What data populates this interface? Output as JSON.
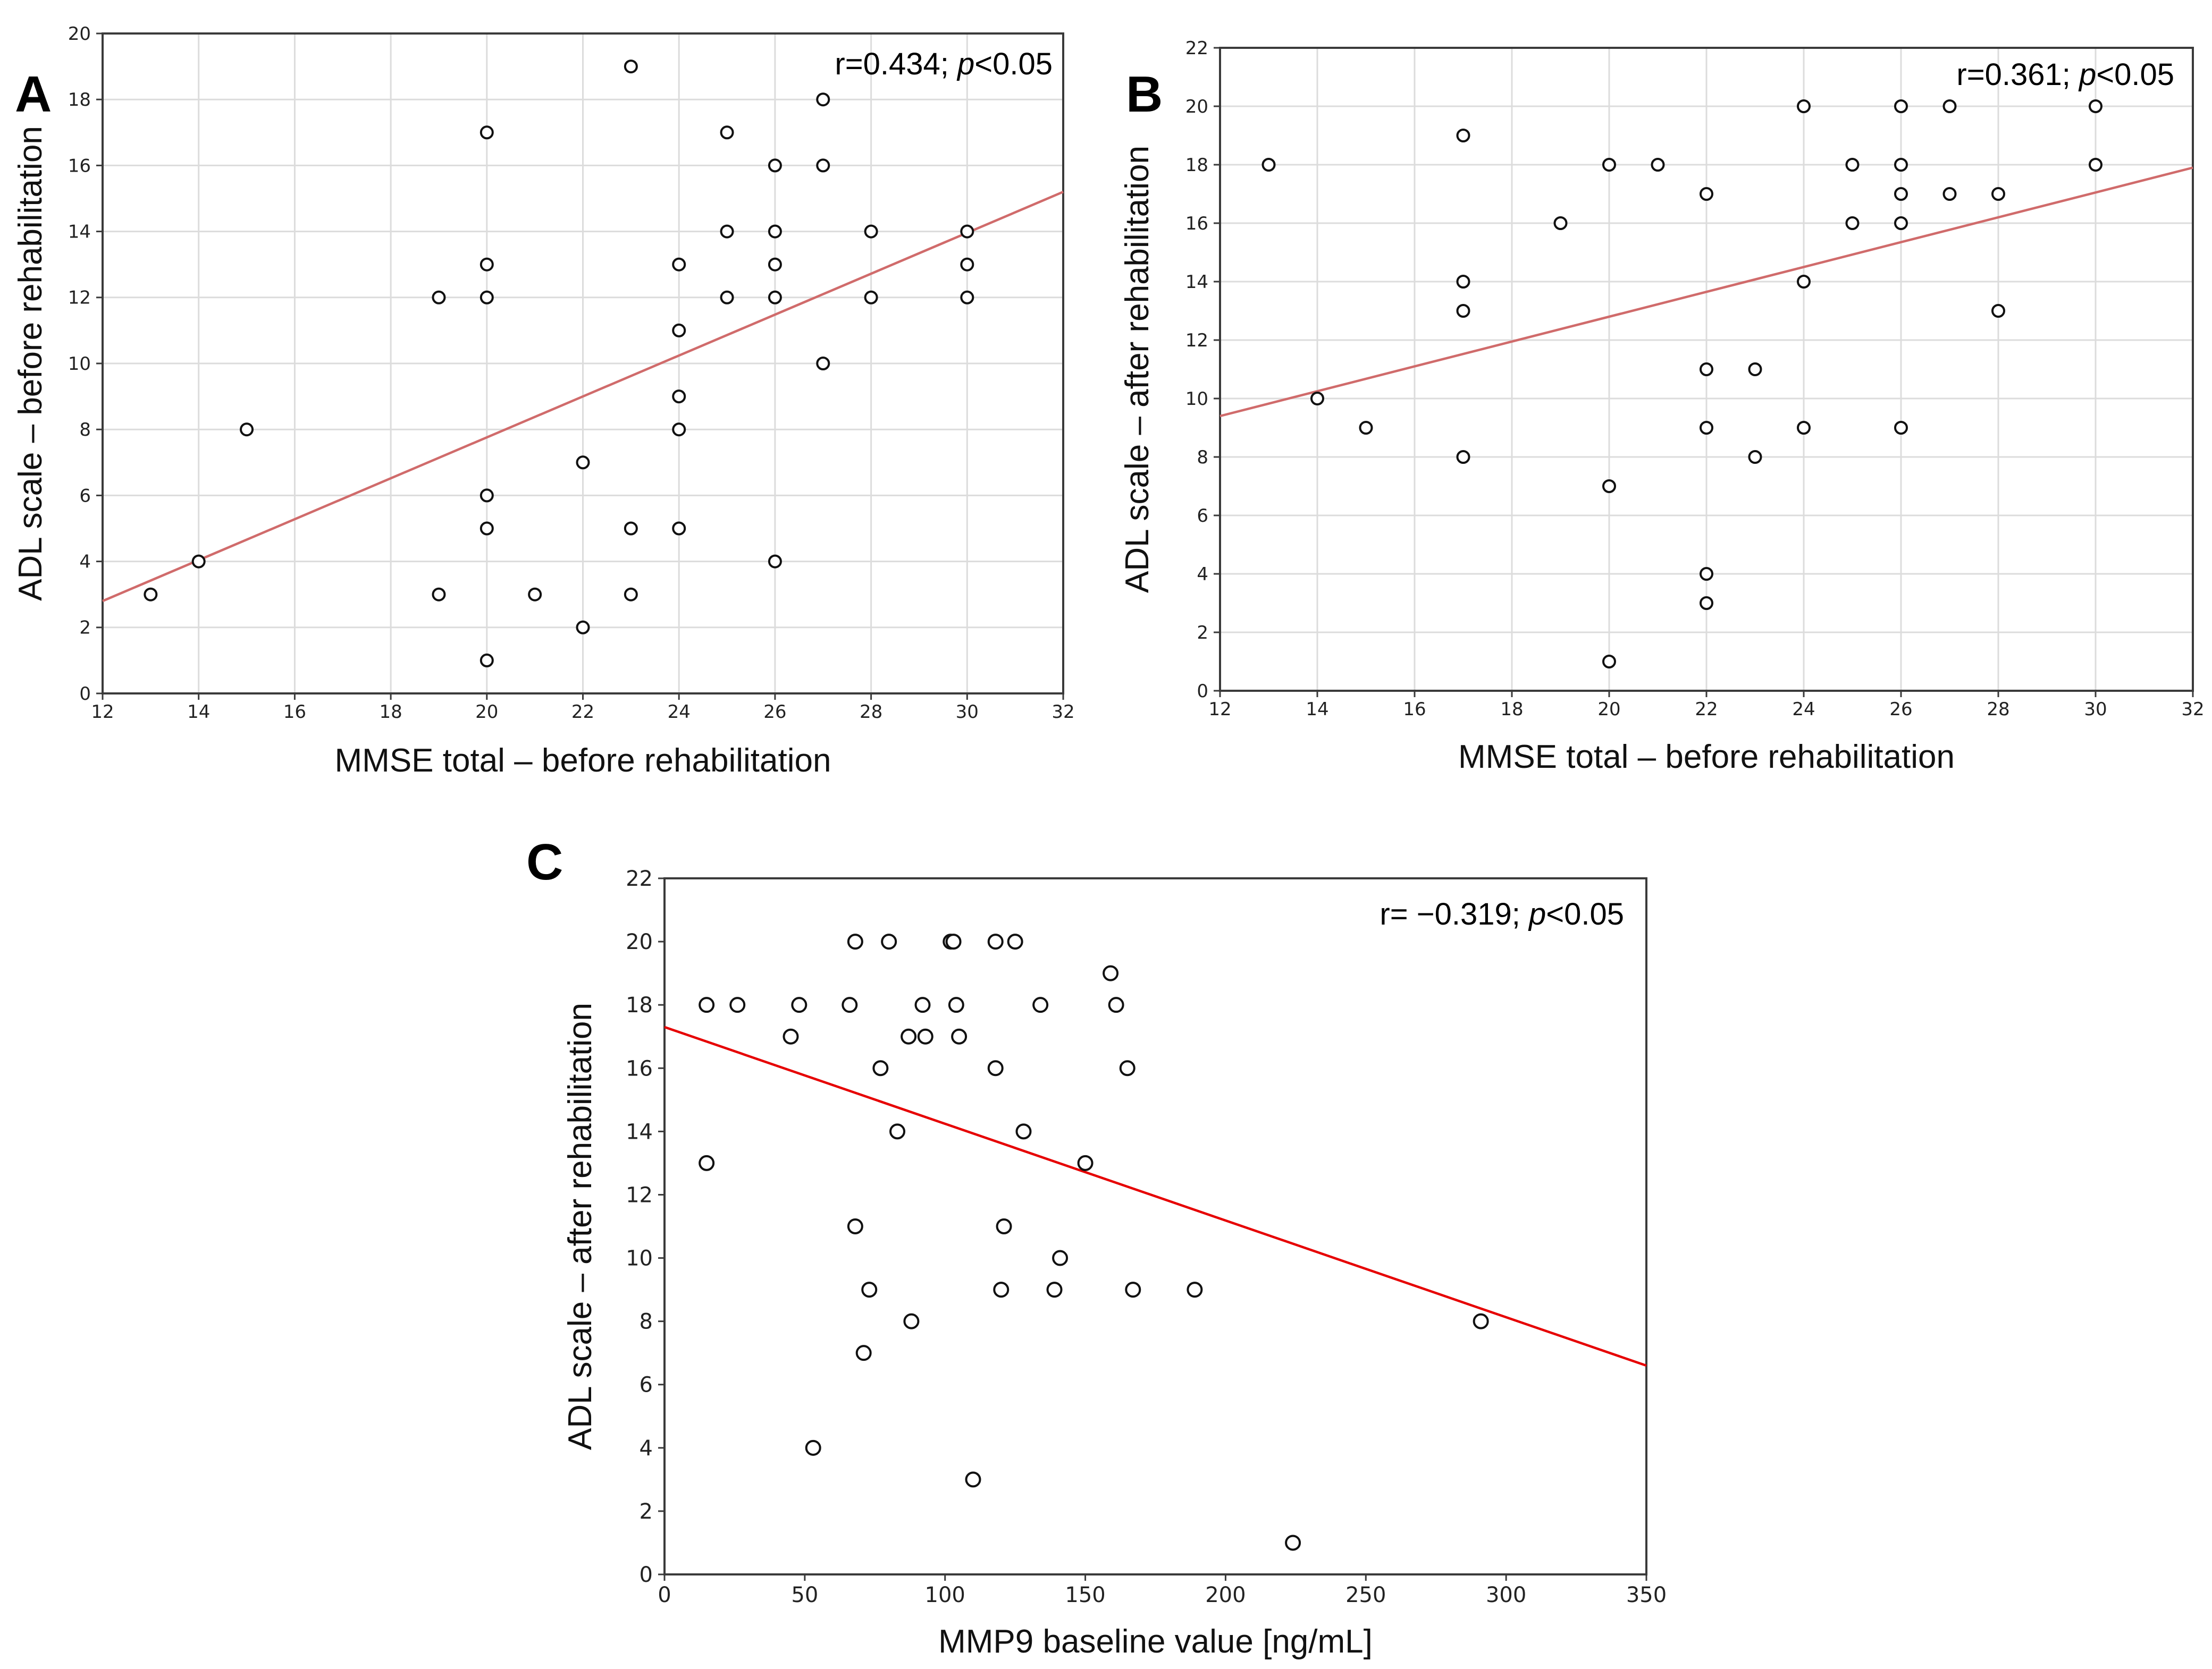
{
  "chart_data": [
    {
      "panel": "A",
      "type": "scatter",
      "xlabel": "MMSE total – before rehabilitation",
      "ylabel": "ADL scale – before rehabilitation",
      "annotation": {
        "r": "r=0.434;",
        "p_sym": "p",
        "p_rest": "<0.05"
      },
      "xlim": [
        12,
        32
      ],
      "ylim": [
        0,
        20
      ],
      "xticks": [
        12,
        14,
        16,
        18,
        20,
        22,
        24,
        26,
        28,
        30,
        32
      ],
      "yticks": [
        0,
        2,
        4,
        6,
        8,
        10,
        12,
        14,
        16,
        18,
        20
      ],
      "grid": true,
      "line_color": "#d06b6b",
      "fit_line": {
        "x": [
          12,
          32
        ],
        "y": [
          2.8,
          15.2
        ]
      },
      "points": [
        [
          13,
          3
        ],
        [
          14,
          4
        ],
        [
          15,
          8
        ],
        [
          19,
          12
        ],
        [
          19,
          3
        ],
        [
          20,
          17
        ],
        [
          20,
          13
        ],
        [
          20,
          12
        ],
        [
          20,
          6
        ],
        [
          20,
          5
        ],
        [
          20,
          1
        ],
        [
          21,
          3
        ],
        [
          22,
          7
        ],
        [
          22,
          2
        ],
        [
          23,
          19
        ],
        [
          23,
          5
        ],
        [
          23,
          3
        ],
        [
          24,
          13
        ],
        [
          24,
          11
        ],
        [
          24,
          9
        ],
        [
          24,
          8
        ],
        [
          24,
          5
        ],
        [
          25,
          17
        ],
        [
          25,
          14
        ],
        [
          25,
          12
        ],
        [
          26,
          16
        ],
        [
          26,
          14
        ],
        [
          26,
          13
        ],
        [
          26,
          12
        ],
        [
          26,
          4
        ],
        [
          27,
          18
        ],
        [
          27,
          16
        ],
        [
          27,
          10
        ],
        [
          28,
          14
        ],
        [
          28,
          12
        ],
        [
          30,
          14
        ],
        [
          30,
          13
        ],
        [
          30,
          12
        ]
      ]
    },
    {
      "panel": "B",
      "type": "scatter",
      "xlabel": "MMSE total – before rehabilitation",
      "ylabel": "ADL scale – after rehabilitation",
      "annotation": {
        "r": "r=0.361;",
        "p_sym": "p",
        "p_rest": "<0.05"
      },
      "xlim": [
        12,
        32
      ],
      "ylim": [
        0,
        22
      ],
      "xticks": [
        12,
        14,
        16,
        18,
        20,
        22,
        24,
        26,
        28,
        30,
        32
      ],
      "yticks": [
        0,
        2,
        4,
        6,
        8,
        10,
        12,
        14,
        16,
        18,
        20,
        22
      ],
      "grid": true,
      "line_color": "#d06b6b",
      "fit_line": {
        "x": [
          12,
          32
        ],
        "y": [
          9.4,
          17.9
        ]
      },
      "points": [
        [
          13,
          18
        ],
        [
          14,
          10
        ],
        [
          15,
          9
        ],
        [
          17,
          19
        ],
        [
          17,
          14
        ],
        [
          17,
          13
        ],
        [
          17,
          8
        ],
        [
          19,
          16
        ],
        [
          20,
          18
        ],
        [
          20,
          7
        ],
        [
          20,
          1
        ],
        [
          21,
          18
        ],
        [
          22,
          17
        ],
        [
          22,
          11
        ],
        [
          22,
          9
        ],
        [
          22,
          4
        ],
        [
          22,
          3
        ],
        [
          23,
          11
        ],
        [
          23,
          8
        ],
        [
          24,
          20
        ],
        [
          24,
          14
        ],
        [
          24,
          9
        ],
        [
          25,
          18
        ],
        [
          25,
          16
        ],
        [
          26,
          20
        ],
        [
          26,
          18
        ],
        [
          26,
          17
        ],
        [
          26,
          16
        ],
        [
          26,
          9
        ],
        [
          27,
          20
        ],
        [
          27,
          17
        ],
        [
          28,
          17
        ],
        [
          28,
          13
        ],
        [
          30,
          20
        ],
        [
          30,
          18
        ]
      ]
    },
    {
      "panel": "C",
      "type": "scatter",
      "xlabel": "MMP9 baseline value [ng/mL]",
      "ylabel": "ADL scale – after rehabilitation",
      "annotation": {
        "r": "r= −0.319;",
        "p_sym": "p",
        "p_rest": "<0.05"
      },
      "xlim": [
        0,
        350
      ],
      "ylim": [
        0,
        22
      ],
      "xticks": [
        0,
        50,
        100,
        150,
        200,
        250,
        300,
        350
      ],
      "yticks": [
        0,
        2,
        4,
        6,
        8,
        10,
        12,
        14,
        16,
        18,
        20,
        22
      ],
      "grid": false,
      "line_color": "#e60000",
      "fit_line": {
        "x": [
          0,
          350
        ],
        "y": [
          17.3,
          6.6
        ]
      },
      "points": [
        [
          15,
          18
        ],
        [
          15,
          13
        ],
        [
          26,
          18
        ],
        [
          45,
          17
        ],
        [
          48,
          18
        ],
        [
          53,
          4
        ],
        [
          66,
          18
        ],
        [
          68,
          20
        ],
        [
          68,
          11
        ],
        [
          71,
          7
        ],
        [
          73,
          9
        ],
        [
          77,
          16
        ],
        [
          80,
          20
        ],
        [
          83,
          14
        ],
        [
          87,
          17
        ],
        [
          88,
          8
        ],
        [
          92,
          18
        ],
        [
          93,
          17
        ],
        [
          102,
          20
        ],
        [
          103,
          20
        ],
        [
          104,
          18
        ],
        [
          105,
          17
        ],
        [
          110,
          3
        ],
        [
          118,
          20
        ],
        [
          118,
          16
        ],
        [
          120,
          9
        ],
        [
          121,
          11
        ],
        [
          125,
          20
        ],
        [
          128,
          14
        ],
        [
          134,
          18
        ],
        [
          139,
          9
        ],
        [
          141,
          10
        ],
        [
          150,
          13
        ],
        [
          159,
          19
        ],
        [
          161,
          18
        ],
        [
          165,
          16
        ],
        [
          167,
          9
        ],
        [
          189,
          9
        ],
        [
          224,
          1
        ],
        [
          291,
          8
        ]
      ]
    }
  ]
}
